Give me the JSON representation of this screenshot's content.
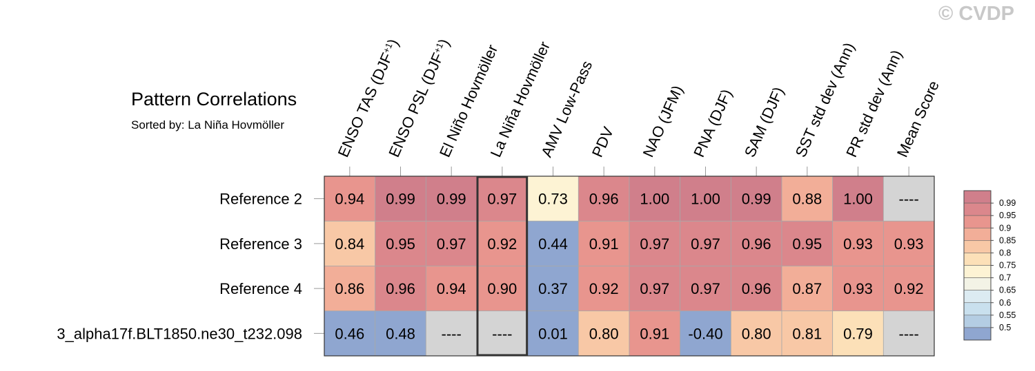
{
  "watermark": "© CVDP",
  "chart_data": {
    "type": "heatmap",
    "title": "Pattern Correlations",
    "subtitle": "Sorted by: La Niña Hovmöller",
    "columns": [
      "ENSO TAS (DJF+1)",
      "ENSO PSL (DJF+1)",
      "El Niño Hovmöller",
      "La Niña Hovmöller",
      "AMV Low-Pass",
      "PDV",
      "NAO (JFM)",
      "PNA (DJF)",
      "SAM (DJF)",
      "SST std dev (Ann)",
      "PR std dev (Ann)",
      "Mean Score"
    ],
    "rows": [
      "Reference 2",
      "Reference 3",
      "Reference 4",
      "3_alpha17f.BLT1850.ne30_t232.098"
    ],
    "values": [
      [
        "0.94",
        "0.99",
        "0.99",
        "0.97",
        "0.73",
        "0.96",
        "1.00",
        "1.00",
        "0.99",
        "0.88",
        "1.00",
        "----"
      ],
      [
        "0.84",
        "0.95",
        "0.97",
        "0.92",
        "0.44",
        "0.91",
        "0.97",
        "0.97",
        "0.96",
        "0.95",
        "0.93",
        "0.93"
      ],
      [
        "0.86",
        "0.96",
        "0.94",
        "0.90",
        "0.37",
        "0.92",
        "0.97",
        "0.97",
        "0.96",
        "0.87",
        "0.93",
        "0.92"
      ],
      [
        "0.46",
        "0.48",
        "----",
        "----",
        "0.01",
        "0.80",
        "0.91",
        "-0.40",
        "0.80",
        "0.81",
        "0.79",
        "----"
      ]
    ],
    "missing_label": "----",
    "sorted_column": "La Niña Hovmöller",
    "colorbar": {
      "labels": [
        "0.99",
        "0.95",
        "0.9",
        "0.85",
        "0.8",
        "0.75",
        "0.7",
        "0.65",
        "0.6",
        "0.55",
        "0.5"
      ],
      "colors": [
        "#d07f8b",
        "#db878c",
        "#e8958e",
        "#f2ae98",
        "#f8c8a6",
        "#fce0b8",
        "#fdf3d4",
        "#f3f3e6",
        "#dcebf2",
        "#c9e0ee",
        "#b4cde3",
        "#8fa6d0"
      ]
    },
    "missing_color": "#d4d4d4"
  }
}
